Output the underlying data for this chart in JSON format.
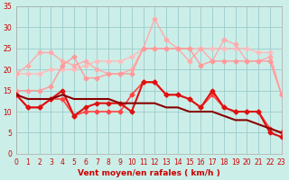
{
  "x": [
    0,
    1,
    2,
    3,
    4,
    5,
    6,
    7,
    8,
    9,
    10,
    11,
    12,
    13,
    14,
    15,
    16,
    17,
    18,
    19,
    20,
    21,
    22,
    23
  ],
  "line_lightest": [
    19,
    19,
    19,
    20,
    20,
    20,
    21,
    22,
    22,
    22,
    23,
    25,
    25,
    25,
    25,
    25,
    25,
    25,
    25,
    25,
    25,
    24,
    24,
    14
  ],
  "line_light1": [
    19,
    21,
    24,
    24,
    22,
    21,
    22,
    20,
    19,
    19,
    20,
    25,
    32,
    27,
    25,
    22,
    25,
    22,
    27,
    26,
    22,
    22,
    23,
    14
  ],
  "line_light2": [
    15,
    15,
    15,
    16,
    21,
    23,
    18,
    18,
    19,
    19,
    19,
    25,
    25,
    25,
    25,
    25,
    21,
    22,
    22,
    22,
    22,
    22,
    22,
    14
  ],
  "line_med": [
    14,
    11,
    11,
    13,
    13,
    9,
    10,
    10,
    10,
    10,
    14,
    17,
    17,
    14,
    14,
    13,
    11,
    14,
    11,
    10,
    10,
    10,
    6,
    5
  ],
  "line_dark": [
    14,
    11,
    11,
    13,
    15,
    9,
    11,
    12,
    12,
    12,
    10,
    17,
    17,
    14,
    14,
    13,
    11,
    15,
    11,
    10,
    10,
    10,
    5,
    4
  ],
  "line_darkest": [
    14,
    13,
    13,
    13,
    14,
    13,
    13,
    13,
    13,
    12,
    12,
    12,
    12,
    11,
    11,
    10,
    10,
    10,
    9,
    8,
    8,
    7,
    6,
    5
  ],
  "colors": {
    "line_lightest": "#ffbbbb",
    "line_light1": "#ffaaaa",
    "line_light2": "#ff9999",
    "line_med": "#ff4444",
    "line_dark": "#dd1111",
    "line_darkest": "#880000"
  },
  "bg_color": "#cceee8",
  "grid_color": "#99cccc",
  "xlabel": "Vent moyen/en rafales ( km/h )",
  "xlim": [
    0,
    23
  ],
  "ylim": [
    0,
    35
  ],
  "yticks": [
    0,
    5,
    10,
    15,
    20,
    25,
    30,
    35
  ],
  "xticks": [
    0,
    1,
    2,
    3,
    4,
    5,
    6,
    7,
    8,
    9,
    10,
    11,
    12,
    13,
    14,
    15,
    16,
    17,
    18,
    19,
    20,
    21,
    22,
    23
  ]
}
